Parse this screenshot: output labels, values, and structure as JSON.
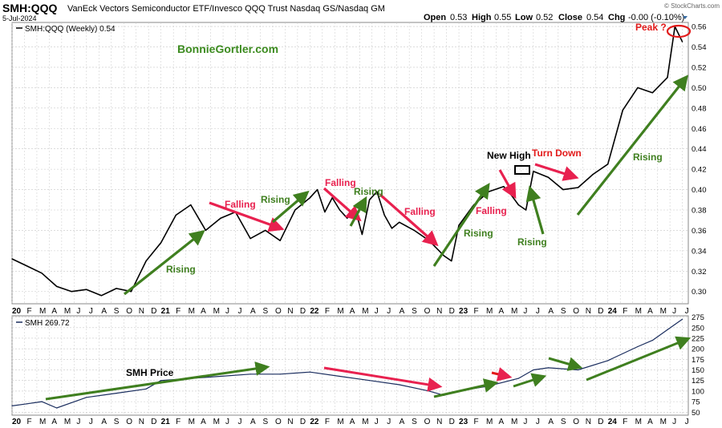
{
  "header": {
    "symbol": "SMH:QQQ",
    "description": "VanEck Vectors Semiconductor ETF/Invesco QQQ Trust Nasdaq GS/Nasdaq GM",
    "date": "5-Jul-2024",
    "credit": "© StockCharts.com",
    "ohlc": {
      "open_label": "Open",
      "open": "0.53",
      "high_label": "High",
      "high": "0.55",
      "low_label": "Low",
      "low": "0.52",
      "close_label": "Close",
      "close": "0.54",
      "chg_label": "Chg",
      "chg": "-0.00 (-0.10%)"
    }
  },
  "watermark": "BonnieGortler.com",
  "colors": {
    "price_line": "#000000",
    "smh_line": "#1a2d5e",
    "green_arrow": "#3f7f1f",
    "red_arrow": "#e8214f",
    "red_arrow_alt": "#e21a1a",
    "grid": "#c8c8c8",
    "text": "#000000"
  },
  "chart_data": [
    {
      "type": "line",
      "legend": "SMH:QQQ (Weekly) 0.54",
      "y_ticks": [
        0.3,
        0.32,
        0.34,
        0.36,
        0.38,
        0.4,
        0.42,
        0.44,
        0.46,
        0.48,
        0.5,
        0.52,
        0.54,
        0.56
      ],
      "ylim": [
        0.288,
        0.564
      ],
      "x_ticks": [
        "20",
        "F",
        "M",
        "A",
        "M",
        "J",
        "J",
        "A",
        "S",
        "O",
        "N",
        "D",
        "21",
        "F",
        "M",
        "A",
        "M",
        "J",
        "J",
        "A",
        "S",
        "O",
        "N",
        "D",
        "22",
        "F",
        "M",
        "A",
        "M",
        "J",
        "J",
        "A",
        "S",
        "O",
        "N",
        "D",
        "23",
        "F",
        "M",
        "A",
        "M",
        "J",
        "J",
        "A",
        "S",
        "O",
        "N",
        "D",
        "24",
        "F",
        "M",
        "A",
        "M",
        "J",
        "J"
      ],
      "x": [
        2020.0,
        2020.1,
        2020.2,
        2020.3,
        2020.4,
        2020.5,
        2020.6,
        2020.7,
        2020.8,
        2020.9,
        2021.0,
        2021.1,
        2021.2,
        2021.3,
        2021.4,
        2021.5,
        2021.6,
        2021.7,
        2021.8,
        2021.9,
        2022.0,
        2022.05,
        2022.1,
        2022.15,
        2022.2,
        2022.25,
        2022.3,
        2022.35,
        2022.4,
        2022.45,
        2022.5,
        2022.55,
        2022.6,
        2022.7,
        2022.8,
        2022.9,
        2022.95,
        2023.0,
        2023.1,
        2023.2,
        2023.3,
        2023.35,
        2023.4,
        2023.45,
        2023.5,
        2023.6,
        2023.7,
        2023.8,
        2023.9,
        2024.0,
        2024.1,
        2024.2,
        2024.3,
        2024.4,
        2024.45,
        2024.5
      ],
      "values": [
        0.332,
        0.325,
        0.318,
        0.305,
        0.3,
        0.302,
        0.296,
        0.303,
        0.3,
        0.33,
        0.348,
        0.375,
        0.385,
        0.36,
        0.372,
        0.378,
        0.352,
        0.36,
        0.35,
        0.38,
        0.392,
        0.4,
        0.378,
        0.392,
        0.38,
        0.372,
        0.383,
        0.356,
        0.39,
        0.398,
        0.375,
        0.362,
        0.368,
        0.36,
        0.35,
        0.335,
        0.33,
        0.365,
        0.385,
        0.398,
        0.403,
        0.395,
        0.385,
        0.38,
        0.418,
        0.412,
        0.4,
        0.402,
        0.415,
        0.425,
        0.478,
        0.5,
        0.495,
        0.51,
        0.56,
        0.545
      ],
      "annotations": [
        {
          "text": "Rising",
          "color": "green"
        },
        {
          "text": "Falling",
          "color": "red"
        },
        {
          "text": "Rising",
          "color": "green"
        },
        {
          "text": "Falling",
          "color": "red"
        },
        {
          "text": "Rising",
          "color": "green"
        },
        {
          "text": "Falling",
          "color": "red"
        },
        {
          "text": "Rising",
          "color": "green"
        },
        {
          "text": "Falling",
          "color": "red"
        },
        {
          "text": "New High",
          "color": "black"
        },
        {
          "text": "Turn Down",
          "color": "red"
        },
        {
          "text": "Rising",
          "color": "green"
        },
        {
          "text": "Rising",
          "color": "green"
        },
        {
          "text": "Peak ?",
          "color": "red"
        }
      ]
    },
    {
      "type": "line",
      "legend": "SMH 269.72",
      "y_ticks": [
        50,
        75,
        100,
        125,
        150,
        175,
        200,
        225,
        250,
        275
      ],
      "ylim": [
        43,
        278
      ],
      "x_ticks": [
        "20",
        "F",
        "M",
        "A",
        "M",
        "J",
        "J",
        "A",
        "S",
        "O",
        "N",
        "D",
        "21",
        "F",
        "M",
        "A",
        "M",
        "J",
        "J",
        "A",
        "S",
        "O",
        "N",
        "D",
        "22",
        "F",
        "M",
        "A",
        "M",
        "J",
        "J",
        "A",
        "S",
        "O",
        "N",
        "D",
        "23",
        "F",
        "M",
        "A",
        "M",
        "J",
        "J",
        "A",
        "S",
        "O",
        "N",
        "D",
        "24",
        "F",
        "M",
        "A",
        "M",
        "J",
        "J"
      ],
      "x": [
        2020.0,
        2020.1,
        2020.2,
        2020.3,
        2020.5,
        2020.7,
        2020.9,
        2021.0,
        2021.2,
        2021.4,
        2021.6,
        2021.8,
        2022.0,
        2022.2,
        2022.4,
        2022.6,
        2022.8,
        2022.9,
        2023.0,
        2023.2,
        2023.4,
        2023.5,
        2023.6,
        2023.8,
        2024.0,
        2024.2,
        2024.3,
        2024.4,
        2024.5
      ],
      "values": [
        65,
        70,
        75,
        60,
        85,
        95,
        105,
        125,
        130,
        135,
        140,
        140,
        145,
        135,
        125,
        115,
        100,
        90,
        100,
        112,
        130,
        150,
        155,
        150,
        172,
        205,
        220,
        245,
        270
      ],
      "annotations": [
        {
          "text": "SMH Price",
          "color": "black"
        }
      ]
    }
  ]
}
